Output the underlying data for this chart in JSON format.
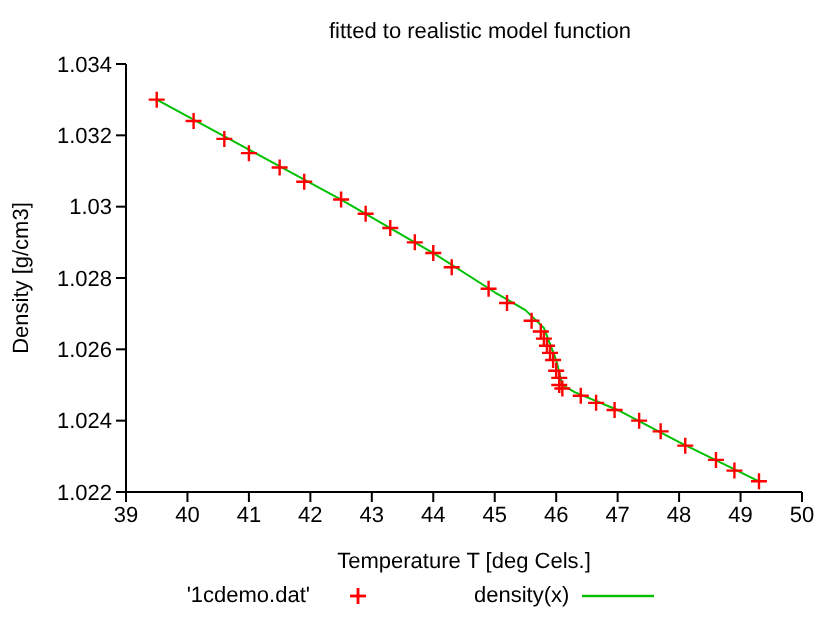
{
  "chart_data": {
    "type": "scatter",
    "title": "fitted to realistic model function",
    "xlabel": "Temperature T   [deg Cels.]",
    "ylabel": "Density [g/cm3]",
    "xlim": [
      39,
      50
    ],
    "xticks": [
      39,
      40,
      41,
      42,
      43,
      44,
      45,
      46,
      47,
      48,
      49,
      50
    ],
    "ylim": [
      1.022,
      1.034
    ],
    "yticks": [
      1.022,
      1.024,
      1.026,
      1.028,
      1.03,
      1.032,
      1.034
    ],
    "legend": "bottom",
    "grid": false,
    "series": [
      {
        "name": "'1cdemo.dat'",
        "color": "#ff0000",
        "marker": "cross",
        "x": [
          39.5,
          40.1,
          40.6,
          41.0,
          41.5,
          41.9,
          42.5,
          42.9,
          43.3,
          43.7,
          44.0,
          44.3,
          44.9,
          45.2,
          45.6,
          45.75,
          45.8,
          45.85,
          45.9,
          45.95,
          46.0,
          46.05,
          46.05,
          46.1,
          46.4,
          46.65,
          46.95,
          47.35,
          47.7,
          48.1,
          48.6,
          48.9,
          49.3
        ],
        "values": [
          1.033,
          1.0324,
          1.0319,
          1.0315,
          1.0311,
          1.0307,
          1.0302,
          1.0298,
          1.0294,
          1.029,
          1.0287,
          1.0283,
          1.0277,
          1.0273,
          1.0268,
          1.0265,
          1.0263,
          1.0261,
          1.0259,
          1.0257,
          1.0254,
          1.0252,
          1.025,
          1.0249,
          1.0247,
          1.0245,
          1.0243,
          1.024,
          1.0237,
          1.0233,
          1.0229,
          1.0226,
          1.0223
        ]
      },
      {
        "name": "density(x)",
        "type": "line",
        "color": "#00c000",
        "marker": "none",
        "x": [
          39.5,
          41,
          42.5,
          44,
          45,
          45.5,
          45.8,
          46.0,
          46.1,
          46.3,
          47,
          48,
          49.3
        ],
        "values": [
          1.033,
          1.0316,
          1.0302,
          1.0287,
          1.0276,
          1.0271,
          1.0266,
          1.0257,
          1.025,
          1.0248,
          1.0243,
          1.0234,
          1.0223
        ]
      }
    ]
  }
}
